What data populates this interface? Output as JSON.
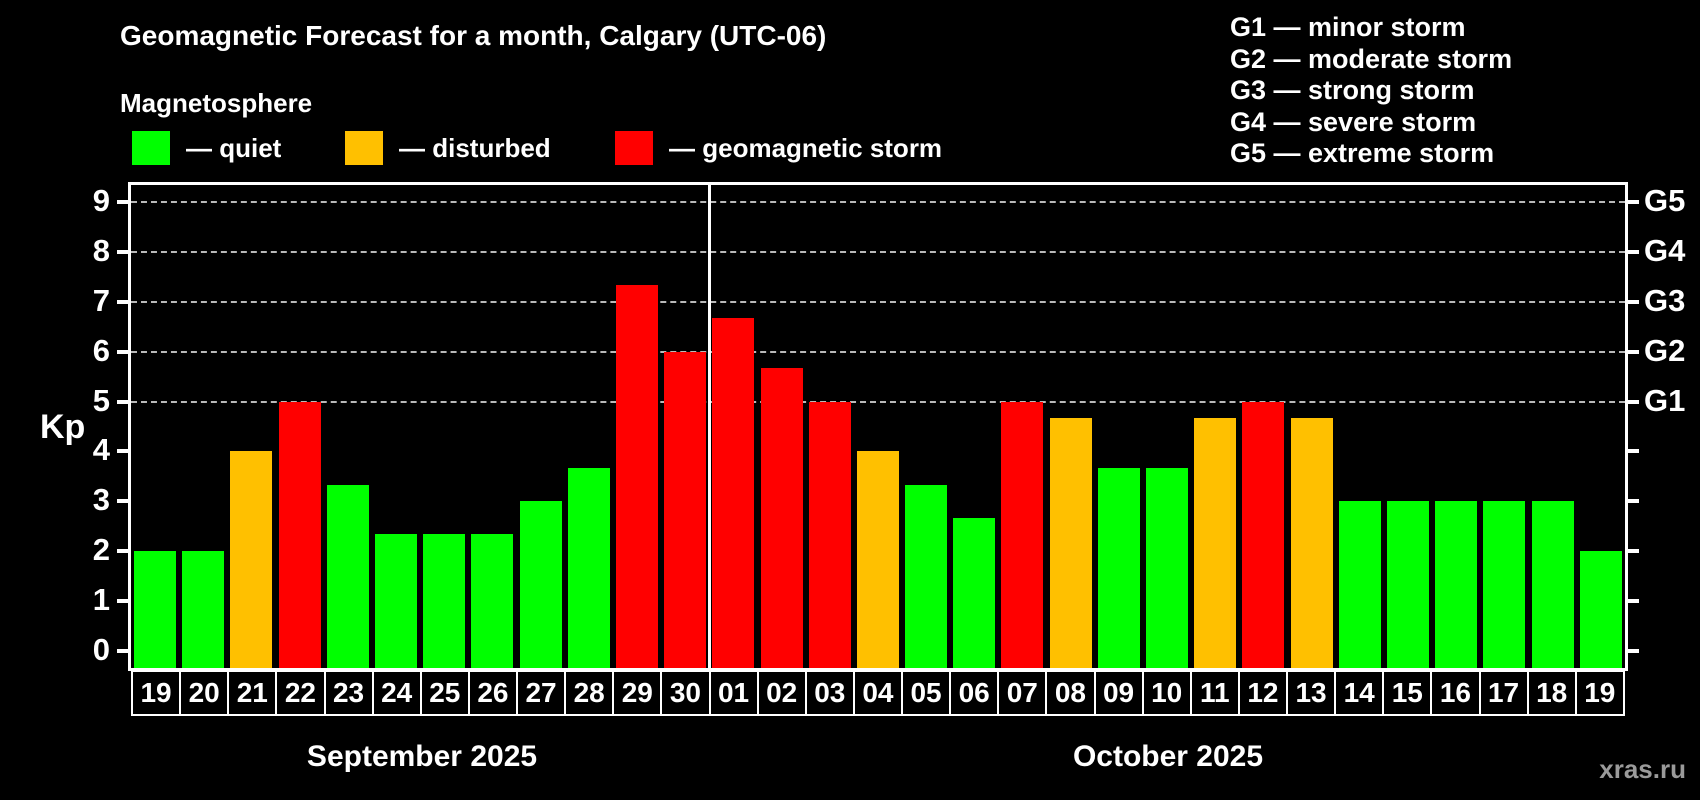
{
  "title": "Geomagnetic Forecast for a month, Calgary (UTC-06)",
  "subtitle": "Magnetosphere",
  "legend": {
    "quiet": {
      "label": "— quiet",
      "color": "#00ff00"
    },
    "disturbed": {
      "label": "— disturbed",
      "color": "#ffc000"
    },
    "storm": {
      "label": "— geomagnetic storm",
      "color": "#ff0000"
    }
  },
  "storm_scale_legend": [
    "G1 — minor storm",
    "G2 — moderate storm",
    "G3 — strong storm",
    "G4 — severe storm",
    "G5 — extreme storm"
  ],
  "watermark": "xras.ru",
  "chart_data": {
    "type": "bar",
    "title": "Geomagnetic Forecast for a month, Calgary (UTC-06)",
    "ylabel": "Kp",
    "ylim": [
      0,
      9
    ],
    "y_ticks": [
      0,
      1,
      2,
      3,
      4,
      5,
      6,
      7,
      8,
      9
    ],
    "grid_levels": [
      5,
      6,
      7,
      8,
      9
    ],
    "grid": "dashed horizontal at G-levels only",
    "legend_position": "top-left",
    "right_axis": [
      {
        "kp": 5,
        "label": "G1"
      },
      {
        "kp": 6,
        "label": "G2"
      },
      {
        "kp": 7,
        "label": "G3"
      },
      {
        "kp": 8,
        "label": "G4"
      },
      {
        "kp": 9,
        "label": "G5"
      }
    ],
    "months": [
      {
        "label": "September 2025",
        "count": 12
      },
      {
        "label": "October 2025",
        "count": 19
      }
    ],
    "days": [
      {
        "day": "19",
        "kp": 2.0,
        "status": "quiet"
      },
      {
        "day": "20",
        "kp": 2.0,
        "status": "quiet"
      },
      {
        "day": "21",
        "kp": 4.0,
        "status": "disturbed"
      },
      {
        "day": "22",
        "kp": 5.0,
        "status": "storm"
      },
      {
        "day": "23",
        "kp": 3.33,
        "status": "quiet"
      },
      {
        "day": "24",
        "kp": 2.33,
        "status": "quiet"
      },
      {
        "day": "25",
        "kp": 2.33,
        "status": "quiet"
      },
      {
        "day": "26",
        "kp": 2.33,
        "status": "quiet"
      },
      {
        "day": "27",
        "kp": 3.0,
        "status": "quiet"
      },
      {
        "day": "28",
        "kp": 3.67,
        "status": "quiet"
      },
      {
        "day": "29",
        "kp": 7.33,
        "status": "storm"
      },
      {
        "day": "30",
        "kp": 6.0,
        "status": "storm"
      },
      {
        "day": "01",
        "kp": 6.67,
        "status": "storm"
      },
      {
        "day": "02",
        "kp": 5.67,
        "status": "storm"
      },
      {
        "day": "03",
        "kp": 5.0,
        "status": "storm"
      },
      {
        "day": "04",
        "kp": 4.0,
        "status": "disturbed"
      },
      {
        "day": "05",
        "kp": 3.33,
        "status": "quiet"
      },
      {
        "day": "06",
        "kp": 2.67,
        "status": "quiet"
      },
      {
        "day": "07",
        "kp": 5.0,
        "status": "storm"
      },
      {
        "day": "08",
        "kp": 4.67,
        "status": "disturbed"
      },
      {
        "day": "09",
        "kp": 3.67,
        "status": "quiet"
      },
      {
        "day": "10",
        "kp": 3.67,
        "status": "quiet"
      },
      {
        "day": "11",
        "kp": 4.67,
        "status": "disturbed"
      },
      {
        "day": "12",
        "kp": 5.0,
        "status": "storm"
      },
      {
        "day": "13",
        "kp": 4.67,
        "status": "disturbed"
      },
      {
        "day": "14",
        "kp": 3.0,
        "status": "quiet"
      },
      {
        "day": "15",
        "kp": 3.0,
        "status": "quiet"
      },
      {
        "day": "16",
        "kp": 3.0,
        "status": "quiet"
      },
      {
        "day": "17",
        "kp": 3.0,
        "status": "quiet"
      },
      {
        "day": "18",
        "kp": 3.0,
        "status": "quiet"
      },
      {
        "day": "19",
        "kp": 2.0,
        "status": "quiet"
      }
    ]
  }
}
